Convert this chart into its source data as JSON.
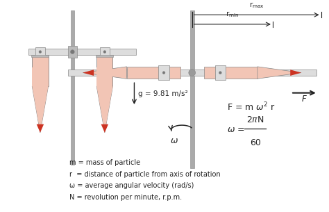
{
  "bg_color": "#ffffff",
  "tube_color_light": "#f2c5b5",
  "tube_color_mid": "#e8a090",
  "tube_color_dark": "#cc3322",
  "gray_light": "#dddddd",
  "gray_mid": "#bbbbbb",
  "gray_dark": "#888888",
  "pole_color": "#aaaaaa",
  "text_color": "#222222",
  "label_g": "g = 9.81 m/s²",
  "label_m": "m = mass of particle",
  "label_r": "r  = distance of particle from axis of rotation",
  "label_omega": "ω = average angular velocity (rad/s)",
  "label_N": "N = revolution per minute, r.p.m.",
  "figsize": [
    4.74,
    3.05
  ],
  "dpi": 100
}
